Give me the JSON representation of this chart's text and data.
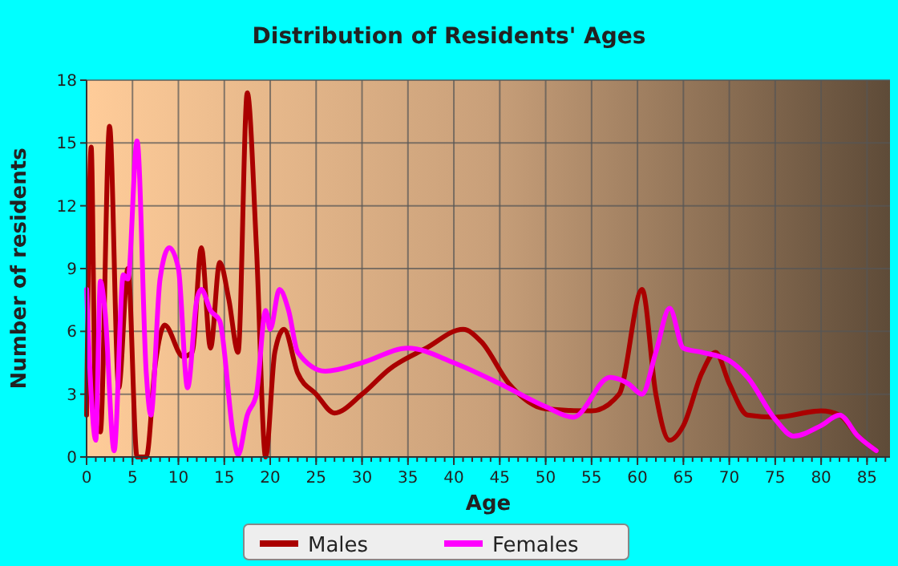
{
  "chart_data": {
    "type": "line",
    "title": "Distribution of Residents' Ages",
    "xlabel": "Age",
    "ylabel": "Number of residents",
    "xlim": [
      0,
      87.5
    ],
    "xticks": [
      0,
      5,
      10,
      15,
      20,
      25,
      30,
      35,
      40,
      45,
      50,
      55,
      60,
      65,
      70,
      75,
      80,
      85
    ],
    "ylim": [
      0,
      18
    ],
    "yticks": [
      0,
      3,
      6,
      9,
      12,
      15,
      18
    ],
    "grid": true,
    "legend": "bottom",
    "marker": "none",
    "line_style": "solid",
    "series": [
      {
        "name": "Males",
        "color": "#aa0000",
        "x": [
          0,
          0.5,
          1,
          1.5,
          2.5,
          3.5,
          4.5,
          5.5,
          6.5,
          7.5,
          8.5,
          10.5,
          11.5,
          12.5,
          13.5,
          14.5,
          15.5,
          16.5,
          17.5,
          18.5,
          19.5,
          20.5,
          21.5,
          23,
          25,
          27,
          30,
          33,
          37,
          41,
          43,
          46,
          50,
          55,
          58,
          60.5,
          62,
          63.5,
          65,
          67,
          68.5,
          70,
          72,
          75,
          80,
          82,
          84,
          86
        ],
        "values": [
          2,
          14.8,
          1.5,
          1.2,
          15.8,
          3.3,
          9,
          0,
          0,
          4.5,
          6.3,
          4.8,
          5,
          10,
          5.2,
          9.3,
          7.5,
          5,
          17.4,
          10,
          0,
          5,
          6.1,
          4,
          3,
          2.1,
          3,
          4.2,
          5.2,
          6.1,
          5.5,
          3.5,
          2.3,
          2.2,
          3,
          8,
          3,
          0.8,
          1.5,
          4,
          5,
          3.5,
          2,
          1.9,
          2.2,
          2,
          1,
          0.3
        ]
      },
      {
        "name": "Females",
        "color": "#ff00ff",
        "x": [
          0,
          0.5,
          1,
          1.5,
          2,
          3,
          4,
          4.5,
          5.5,
          6.5,
          7,
          8,
          9,
          10,
          11,
          12,
          12.5,
          13.5,
          14.5,
          16,
          16.5,
          17.5,
          18.5,
          19.5,
          20,
          21,
          22,
          23,
          26,
          30,
          35,
          40,
          45,
          50,
          53,
          57,
          59,
          60.5,
          62,
          63.5,
          65,
          67,
          70,
          72,
          75,
          77,
          80,
          82,
          84,
          86
        ],
        "values": [
          8,
          3,
          0.8,
          8.4,
          7,
          0.3,
          8.7,
          8.5,
          15.1,
          4,
          2,
          8.5,
          10,
          9,
          3.3,
          7.5,
          8,
          7,
          6.5,
          1,
          0.1,
          2,
          3,
          7,
          6.1,
          8,
          7,
          5,
          4.1,
          4.5,
          5.2,
          4.5,
          3.5,
          2.4,
          1.9,
          3.8,
          3.5,
          3,
          5,
          7.1,
          5.2,
          5,
          4.6,
          3.8,
          1.8,
          1,
          1.5,
          2,
          1,
          0.3
        ]
      }
    ]
  }
}
